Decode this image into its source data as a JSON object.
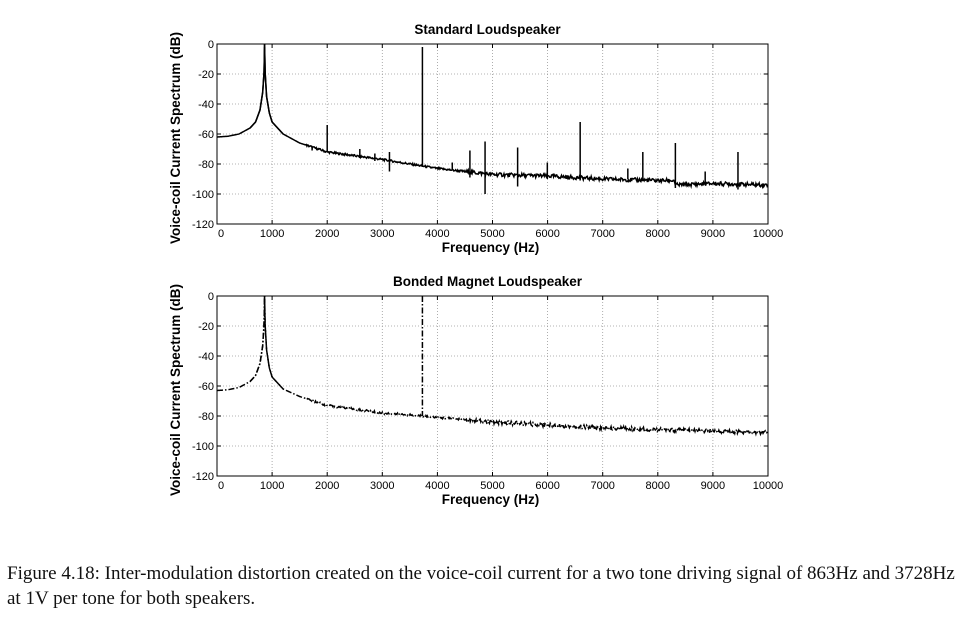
{
  "chart_data": [
    {
      "type": "line",
      "title": "Standard Loudspeaker",
      "xlabel": "Frequency (Hz)",
      "ylabel": "Voice-coil Current Spectrum (dB)",
      "xlim": [
        0,
        10000
      ],
      "ylim": [
        -120,
        0
      ],
      "xticks": [
        0,
        1000,
        2000,
        3000,
        4000,
        5000,
        6000,
        7000,
        8000,
        9000,
        10000
      ],
      "yticks": [
        0,
        -20,
        -40,
        -60,
        -80,
        -100,
        -120
      ],
      "grid": true,
      "line_style": "solid",
      "baseline": [
        {
          "x": 0,
          "y": -62
        },
        {
          "x": 200,
          "y": -61.5
        },
        {
          "x": 400,
          "y": -60
        },
        {
          "x": 600,
          "y": -56
        },
        {
          "x": 700,
          "y": -52
        },
        {
          "x": 780,
          "y": -44
        },
        {
          "x": 830,
          "y": -32
        },
        {
          "x": 855,
          "y": -18
        },
        {
          "x": 863,
          "y": 0
        },
        {
          "x": 872,
          "y": -18
        },
        {
          "x": 900,
          "y": -35
        },
        {
          "x": 950,
          "y": -46
        },
        {
          "x": 1000,
          "y": -52
        },
        {
          "x": 1200,
          "y": -60
        },
        {
          "x": 1500,
          "y": -66
        },
        {
          "x": 2000,
          "y": -72
        },
        {
          "x": 3000,
          "y": -77
        },
        {
          "x": 4000,
          "y": -83
        },
        {
          "x": 5000,
          "y": -87
        },
        {
          "x": 6000,
          "y": -88
        },
        {
          "x": 7000,
          "y": -90
        },
        {
          "x": 8000,
          "y": -91
        },
        {
          "x": 8300,
          "y": -91
        },
        {
          "x": 8320,
          "y": -94
        },
        {
          "x": 9000,
          "y": -93
        },
        {
          "x": 10000,
          "y": -94
        }
      ],
      "spikes": [
        {
          "x": 863,
          "top": 0,
          "bottom": -16
        },
        {
          "x": 1726,
          "top": -69,
          "bottom": -71
        },
        {
          "x": 2000,
          "top": -54,
          "bottom": -72
        },
        {
          "x": 2592,
          "top": -70,
          "bottom": -76
        },
        {
          "x": 2865,
          "top": -73,
          "bottom": -78
        },
        {
          "x": 3130,
          "top": -72,
          "bottom": -85
        },
        {
          "x": 3728,
          "top": -2,
          "bottom": -82
        },
        {
          "x": 4270,
          "top": -79,
          "bottom": -84
        },
        {
          "x": 4590,
          "top": -71,
          "bottom": -89
        },
        {
          "x": 4865,
          "top": -65,
          "bottom": -100
        },
        {
          "x": 5456,
          "top": -69,
          "bottom": -95
        },
        {
          "x": 5995,
          "top": -79,
          "bottom": -90
        },
        {
          "x": 6591,
          "top": -52,
          "bottom": -91
        },
        {
          "x": 7456,
          "top": -83,
          "bottom": -90
        },
        {
          "x": 7728,
          "top": -72,
          "bottom": -91
        },
        {
          "x": 8319,
          "top": -66,
          "bottom": -96
        },
        {
          "x": 8860,
          "top": -85,
          "bottom": -93
        },
        {
          "x": 9455,
          "top": -72,
          "bottom": -97
        }
      ]
    },
    {
      "type": "line",
      "title": "Bonded Magnet Loudspeaker",
      "xlabel": "Frequency (Hz)",
      "ylabel": "Voice-coil Current Spectrum (dB)",
      "xlim": [
        0,
        10000
      ],
      "ylim": [
        -120,
        0
      ],
      "xticks": [
        0,
        1000,
        2000,
        3000,
        4000,
        5000,
        6000,
        7000,
        8000,
        9000,
        10000
      ],
      "yticks": [
        0,
        -20,
        -40,
        -60,
        -80,
        -100,
        -120
      ],
      "grid": true,
      "line_style": "dash-dot",
      "baseline": [
        {
          "x": 0,
          "y": -63
        },
        {
          "x": 200,
          "y": -62.5
        },
        {
          "x": 400,
          "y": -61
        },
        {
          "x": 600,
          "y": -57
        },
        {
          "x": 700,
          "y": -53
        },
        {
          "x": 780,
          "y": -45
        },
        {
          "x": 830,
          "y": -33
        },
        {
          "x": 855,
          "y": -18
        },
        {
          "x": 863,
          "y": 0
        },
        {
          "x": 872,
          "y": -18
        },
        {
          "x": 900,
          "y": -36
        },
        {
          "x": 950,
          "y": -48
        },
        {
          "x": 1000,
          "y": -54
        },
        {
          "x": 1200,
          "y": -62
        },
        {
          "x": 1500,
          "y": -67
        },
        {
          "x": 2000,
          "y": -73
        },
        {
          "x": 3000,
          "y": -78
        },
        {
          "x": 3728,
          "y": -80
        },
        {
          "x": 4000,
          "y": -81
        },
        {
          "x": 5000,
          "y": -84
        },
        {
          "x": 6000,
          "y": -86
        },
        {
          "x": 7000,
          "y": -88
        },
        {
          "x": 8000,
          "y": -89
        },
        {
          "x": 9000,
          "y": -90
        },
        {
          "x": 10000,
          "y": -91
        }
      ],
      "spikes": [
        {
          "x": 863,
          "top": 0,
          "bottom": -16
        },
        {
          "x": 3728,
          "top": 0,
          "bottom": -80
        }
      ]
    }
  ],
  "caption": {
    "label": "Figure 4.18:",
    "text": "Inter-modulation distortion created on the voice-coil current for a two tone driving signal of 863Hz and 3728Hz at 1V per tone for both speakers."
  }
}
